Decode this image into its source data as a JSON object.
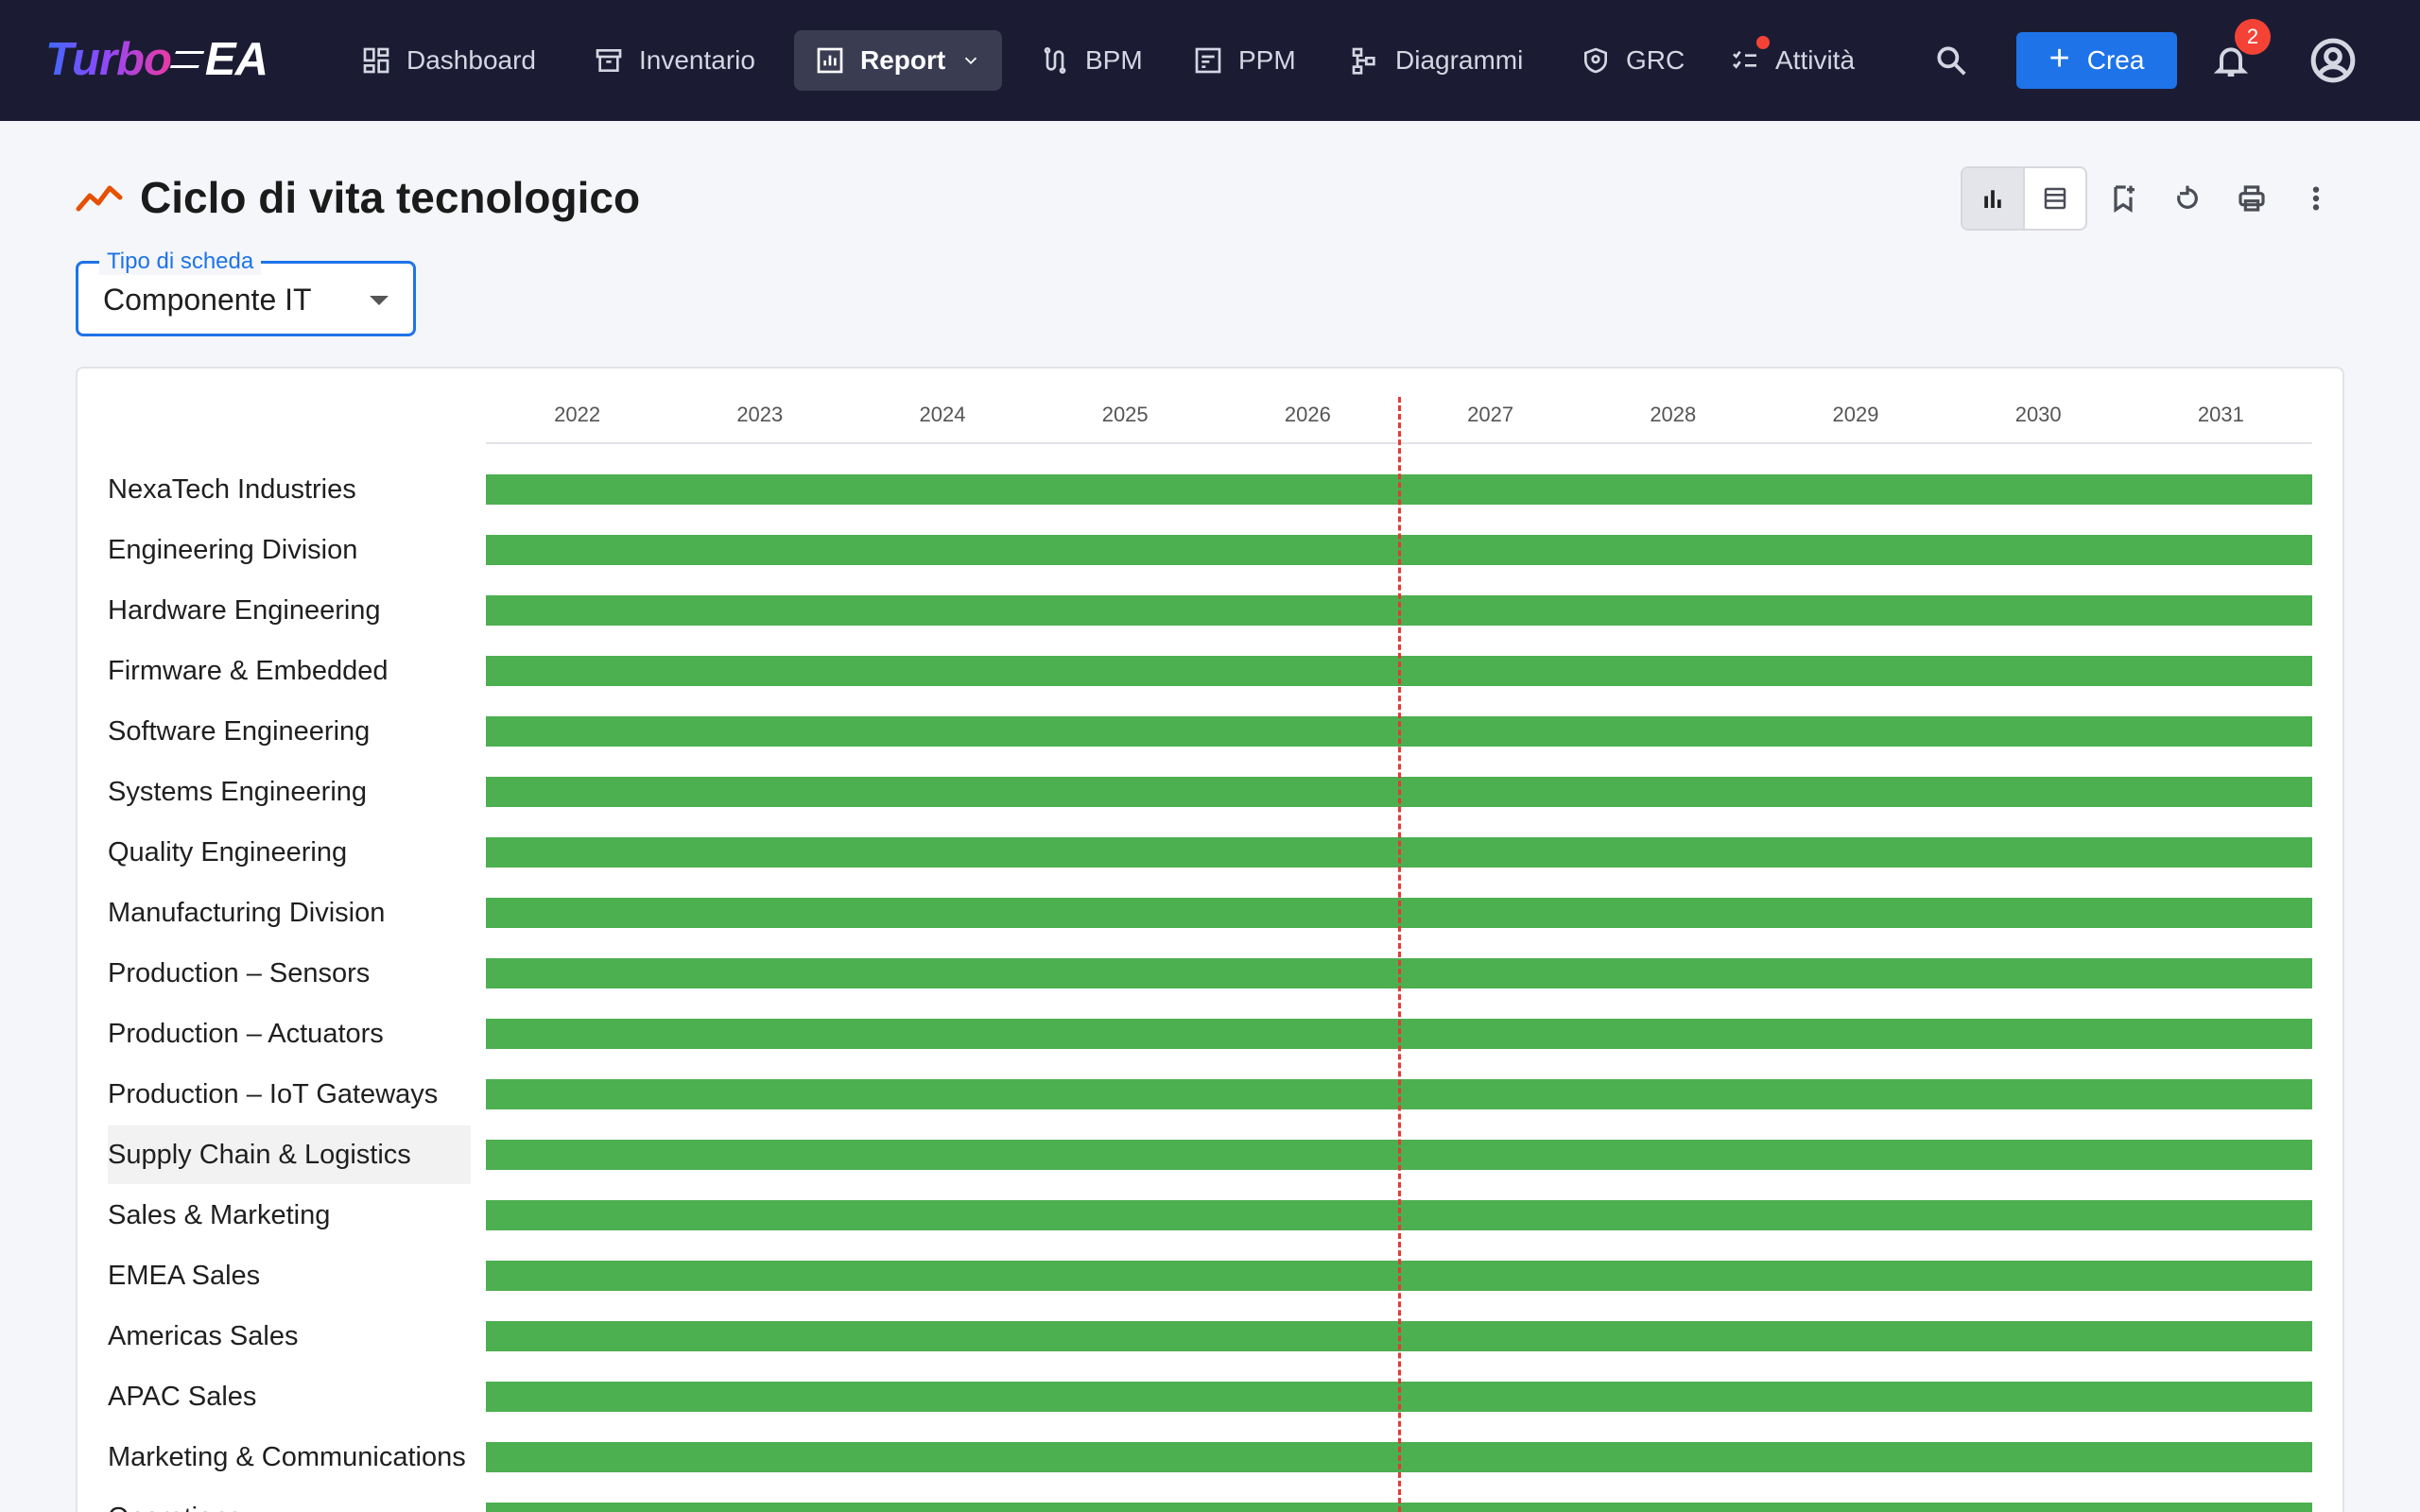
{
  "app": {
    "logo_text_1": "Turbo",
    "logo_text_2": "EA"
  },
  "nav": {
    "items": [
      {
        "label": "Dashboard",
        "icon": "dashboard-icon"
      },
      {
        "label": "Inventario",
        "icon": "archive-icon"
      },
      {
        "label": "Report",
        "icon": "report-icon",
        "active": true
      },
      {
        "label": "BPM",
        "icon": "bpm-icon"
      },
      {
        "label": "PPM",
        "icon": "ppm-icon"
      },
      {
        "label": "Diagrammi",
        "icon": "diagram-icon"
      },
      {
        "label": "GRC",
        "icon": "shield-icon"
      },
      {
        "label": "Attività",
        "icon": "tasks-icon"
      }
    ],
    "create_label": "Crea",
    "notifications_count": "2"
  },
  "page": {
    "title": "Ciclo di vita tecnologico",
    "card_type_label": "Tipo di scheda",
    "card_type_value": "Componente IT"
  },
  "chart_data": {
    "type": "gantt",
    "x_ticks": [
      "2022",
      "2023",
      "2024",
      "2025",
      "2026",
      "2027",
      "2028",
      "2029",
      "2030",
      "2031"
    ],
    "today_marker": 2026.5,
    "bar_color": "#4caf50",
    "today_color": "#e53935",
    "rows": [
      {
        "label": "NexaTech Industries",
        "start": 2021.5,
        "end": 2031.5
      },
      {
        "label": "Engineering Division",
        "start": 2021.5,
        "end": 2031.5
      },
      {
        "label": "Hardware Engineering",
        "start": 2021.5,
        "end": 2031.5
      },
      {
        "label": "Firmware & Embedded",
        "start": 2021.5,
        "end": 2031.5
      },
      {
        "label": "Software Engineering",
        "start": 2021.5,
        "end": 2031.5
      },
      {
        "label": "Systems Engineering",
        "start": 2021.5,
        "end": 2031.5
      },
      {
        "label": "Quality Engineering",
        "start": 2021.5,
        "end": 2031.5
      },
      {
        "label": "Manufacturing Division",
        "start": 2021.5,
        "end": 2031.5
      },
      {
        "label": "Production – Sensors",
        "start": 2021.5,
        "end": 2031.5
      },
      {
        "label": "Production – Actuators",
        "start": 2021.5,
        "end": 2031.5
      },
      {
        "label": "Production – IoT Gateways",
        "start": 2021.5,
        "end": 2031.5
      },
      {
        "label": "Supply Chain & Logistics",
        "start": 2021.5,
        "end": 2031.5,
        "highlighted": true
      },
      {
        "label": "Sales & Marketing",
        "start": 2021.5,
        "end": 2031.5
      },
      {
        "label": "EMEA Sales",
        "start": 2021.5,
        "end": 2031.5
      },
      {
        "label": "Americas Sales",
        "start": 2021.5,
        "end": 2031.5
      },
      {
        "label": "APAC Sales",
        "start": 2021.5,
        "end": 2031.5
      },
      {
        "label": "Marketing & Communications",
        "start": 2021.5,
        "end": 2031.5
      },
      {
        "label": "Operations",
        "start": 2021.5,
        "end": 2031.5
      }
    ]
  }
}
